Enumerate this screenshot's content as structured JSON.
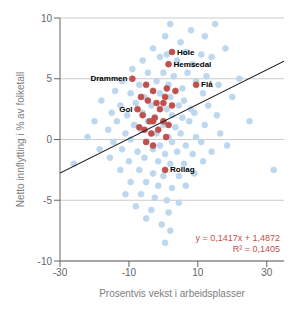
{
  "chart_data": {
    "type": "scatter",
    "xlabel": "Prosentvis vekst i arbeidsplasser",
    "ylabel": "Netto innflytting i % av folketall",
    "xlim": [
      -30,
      35
    ],
    "ylim": [
      -10,
      10
    ],
    "xticks": [
      -30,
      -10,
      10,
      30
    ],
    "yticks": [
      -10,
      -5,
      0,
      5,
      10
    ],
    "grid": true,
    "series": [
      {
        "type": "scatter",
        "color": "#BDD7EE",
        "x": [
          2.0,
          8.0,
          15.0,
          0.5,
          5.0,
          12.0,
          -3.0,
          1.0,
          6.5,
          11.0,
          18.0,
          -6.0,
          -1.0,
          4.0,
          8.5,
          14.0,
          -9.0,
          -4.5,
          0.0,
          3.0,
          7.0,
          12.5,
          22.0,
          -12.0,
          -7.0,
          -2.0,
          1.5,
          5.5,
          9.5,
          16.0,
          -14.0,
          -9.5,
          -5.5,
          -1.0,
          2.0,
          6.0,
          11.5,
          20.0,
          -18.0,
          -12.5,
          -8.0,
          -3.5,
          1.0,
          4.5,
          8.0,
          13.0,
          -15.0,
          -10.5,
          -6.0,
          -2.5,
          2.5,
          5.5,
          9.0,
          15.5,
          -20.0,
          -13.5,
          -8.5,
          -4.5,
          0.0,
          3.5,
          7.5,
          12.0,
          25.0,
          -16.0,
          -11.0,
          -6.5,
          -2.0,
          1.5,
          5.0,
          9.5,
          16.5,
          -22.0,
          -14.5,
          -9.5,
          -5.0,
          -1.0,
          2.5,
          6.5,
          11.0,
          18.5,
          -18.5,
          -12.0,
          -7.5,
          -3.0,
          0.5,
          4.0,
          8.5,
          14.0,
          -15.5,
          -10.0,
          -5.5,
          -1.5,
          2.0,
          6.0,
          11.5,
          -12.5,
          -7.0,
          -3.0,
          0.0,
          4.5,
          9.0,
          -9.5,
          -5.0,
          -1.5,
          2.5,
          6.5,
          -11.0,
          -6.5,
          -2.5,
          1.0,
          4.5,
          -8.0,
          -3.5,
          1.5,
          -5.0,
          -0.5,
          2.0,
          0.5,
          32.0,
          -26.0
        ],
        "values": [
          9.5,
          9.0,
          9.5,
          8.5,
          8.0,
          8.5,
          7.5,
          7.0,
          7.2,
          7.0,
          7.5,
          6.5,
          6.8,
          6.5,
          6.2,
          6.8,
          5.8,
          5.5,
          5.5,
          5.2,
          5.5,
          5.2,
          5.0,
          4.8,
          4.5,
          4.8,
          4.5,
          4.2,
          4.8,
          4.5,
          4.0,
          3.8,
          3.5,
          3.8,
          3.5,
          3.2,
          3.8,
          3.5,
          3.2,
          2.8,
          3.0,
          2.8,
          2.5,
          2.8,
          2.5,
          2.8,
          2.2,
          2.0,
          2.2,
          1.8,
          2.0,
          1.8,
          2.2,
          2.0,
          1.5,
          1.5,
          1.2,
          1.5,
          1.2,
          1.0,
          1.5,
          1.2,
          1.5,
          0.8,
          0.5,
          0.8,
          0.5,
          0.2,
          0.5,
          0.2,
          0.5,
          0.2,
          -0.2,
          0.0,
          -0.2,
          -0.5,
          -0.2,
          -0.5,
          -0.2,
          -0.5,
          -0.8,
          -0.8,
          -1.0,
          -0.8,
          -1.2,
          -1.0,
          -1.2,
          -1.0,
          -1.5,
          -1.8,
          -1.5,
          -1.8,
          -2.0,
          -2.0,
          -1.8,
          -2.5,
          -2.5,
          -2.8,
          -3.0,
          -3.0,
          -2.8,
          -3.5,
          -3.5,
          -3.8,
          -4.0,
          -3.8,
          -4.5,
          -4.5,
          -4.8,
          -5.0,
          -5.2,
          -5.5,
          -5.8,
          -6.0,
          -6.5,
          -7.0,
          -7.5,
          -8.5,
          -2.5,
          -2.0
        ]
      },
      {
        "type": "scatter",
        "color": "#C0504D",
        "x": [
          -5.0,
          -3.0,
          1.0,
          3.5,
          -4.5,
          -2.0,
          0.5,
          2.5,
          -6.0,
          -4.0,
          -2.5,
          0.0,
          -5.5,
          -3.5,
          -1.5,
          0.8,
          -5.0,
          -3.0,
          -7.0,
          1.5,
          -6.5,
          -1.0,
          0.0,
          -3.0
        ],
        "values": [
          4.5,
          4.0,
          4.2,
          4.0,
          3.2,
          3.0,
          3.5,
          2.8,
          2.0,
          1.5,
          1.8,
          1.5,
          0.8,
          0.5,
          0.8,
          0.2,
          -0.2,
          -0.5,
          1.0,
          1.2,
          3.5,
          2.5,
          3.0,
          1.5
        ]
      },
      {
        "type": "scatter",
        "color": "#C0504D",
        "x": [
          2.5,
          1.5,
          -9.0,
          -7.5,
          0.5,
          9.5
        ],
        "values": [
          7.2,
          6.2,
          5.0,
          2.5,
          -2.5,
          4.5
        ],
        "labels": [
          "Hole",
          "Hemsedal",
          "Drammen",
          "Gol",
          "Rollag",
          "Flå"
        ]
      },
      {
        "type": "line",
        "color": "#1F1F1F",
        "x": [
          -30,
          35
        ],
        "values": [
          -2.7638,
          6.4467
        ]
      }
    ],
    "annotations": [
      {
        "text": "y = 0,1417x + 1,4872",
        "color": "#C0504D"
      },
      {
        "text": "R² = 0,1405",
        "color": "#C0504D"
      }
    ]
  }
}
